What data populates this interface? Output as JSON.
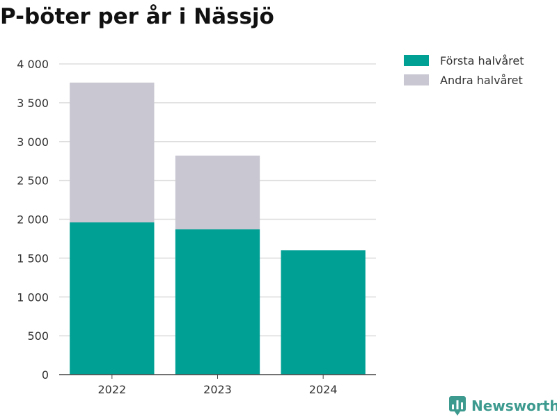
{
  "chart_data": {
    "type": "bar",
    "stacked": true,
    "title": "P-böter per år i Nässjö",
    "categories": [
      "2022",
      "2023",
      "2024"
    ],
    "series": [
      {
        "name": "Första halvåret",
        "color": "#00a095",
        "values": [
          1960,
          1870,
          1600
        ]
      },
      {
        "name": "Andra halvåret",
        "color": "#c8c7d2",
        "values": [
          1800,
          950,
          0
        ]
      }
    ],
    "ylim": [
      0,
      4000
    ],
    "yticks": [
      0,
      500,
      1000,
      1500,
      2000,
      2500,
      3000,
      3500,
      4000
    ],
    "ytick_labels": [
      "0",
      "500",
      "1 000",
      "1 500",
      "2 000",
      "2 500",
      "3 000",
      "3 500",
      "4 000"
    ],
    "grid": true,
    "legend_position": "top-right"
  },
  "brand": {
    "name": "Newsworthy",
    "color": "#3d9a8f"
  }
}
